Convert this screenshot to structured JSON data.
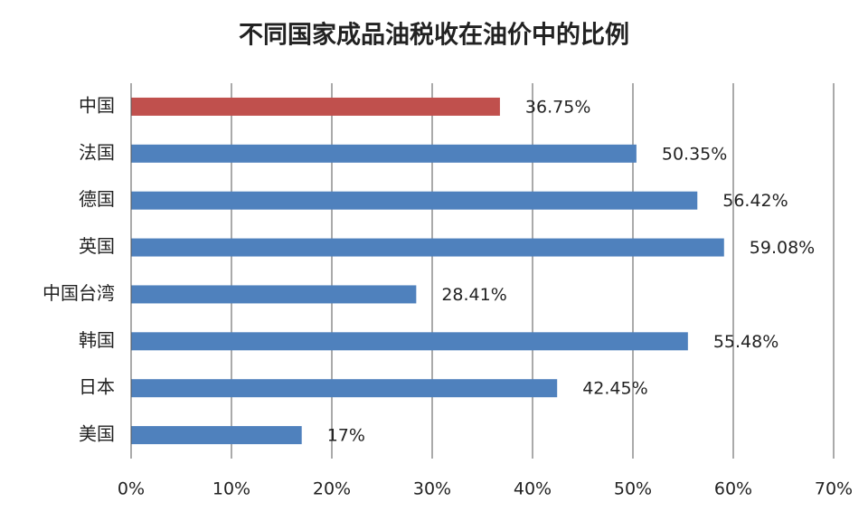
{
  "chart_data": {
    "type": "bar",
    "orientation": "horizontal",
    "title": "不同国家成品油税收在油价中的比例",
    "categories": [
      "中国",
      "法国",
      "德国",
      "英国",
      "中国台湾",
      "韩国",
      "日本",
      "美国"
    ],
    "values": [
      36.75,
      50.35,
      56.42,
      59.08,
      28.41,
      55.48,
      42.45,
      17
    ],
    "value_labels": [
      "36.75%",
      "50.35%",
      "56.42%",
      "59.08%",
      "28.41%",
      "55.48%",
      "42.45%",
      "17%"
    ],
    "colors": [
      "#c0504d",
      "#4f81bd",
      "#4f81bd",
      "#4f81bd",
      "#4f81bd",
      "#4f81bd",
      "#4f81bd",
      "#4f81bd"
    ],
    "xlim": [
      0,
      70
    ],
    "xticks": [
      {
        "value": 0,
        "label": "0%"
      },
      {
        "value": 10,
        "label": "10%"
      },
      {
        "value": 20,
        "label": "20%"
      },
      {
        "value": 30,
        "label": "30%"
      },
      {
        "value": 40,
        "label": "40%"
      },
      {
        "value": 50,
        "label": "50%"
      },
      {
        "value": 60,
        "label": "60%"
      },
      {
        "value": 70,
        "label": "70%"
      }
    ],
    "grid": true
  }
}
